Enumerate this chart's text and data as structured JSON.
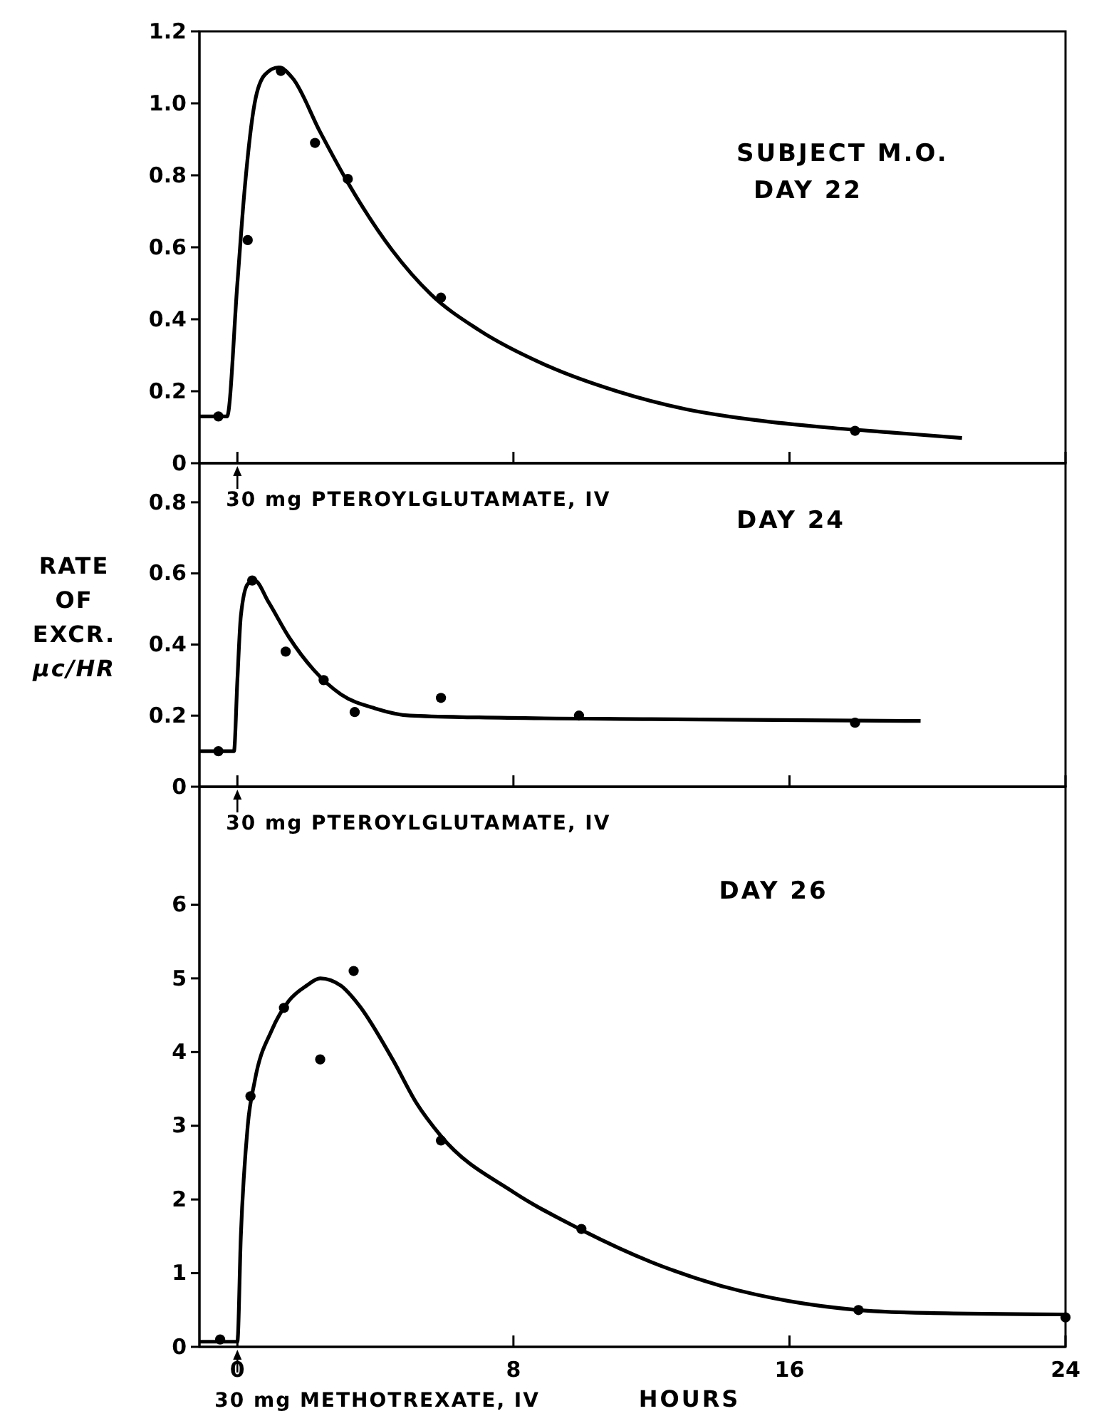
{
  "chart_data": [
    {
      "type": "scatter",
      "title": "SUBJECT M.O.",
      "subtitle": "DAY 22",
      "xlim": [
        -1.1,
        24
      ],
      "xticks": [
        0,
        8,
        16,
        24
      ],
      "ylim": [
        0,
        1.2
      ],
      "yticks": [
        0,
        0.2,
        0.4,
        0.6,
        0.8,
        {
          "value": 1.0,
          "label": "1.0"
        },
        1.2
      ],
      "tick_labels": "y",
      "grid": false,
      "annotations": [
        "30 mg PTEROYLGLUTAMATE, IV"
      ],
      "series": [
        {
          "type": "scatter",
          "marker": "circle",
          "color": "#000000",
          "x": [
            -0.55,
            0.3,
            1.26,
            2.25,
            3.2,
            5.9,
            17.9
          ],
          "values": [
            0.13,
            0.62,
            1.09,
            0.89,
            0.79,
            0.46,
            0.09
          ]
        },
        {
          "type": "line",
          "marker": "none",
          "line_style": "solid",
          "color": "#000000",
          "x": [
            -1.1,
            -0.3,
            0,
            0.2,
            0.5,
            0.8,
            1.2,
            1.6,
            2.4,
            3.2,
            4.5,
            5.6,
            7,
            9,
            11,
            13,
            15,
            17,
            19,
            21
          ],
          "values": [
            0.13,
            0.13,
            0.5,
            0.75,
            1.0,
            1.08,
            1.1,
            1.07,
            0.92,
            0.78,
            0.59,
            0.47,
            0.37,
            0.27,
            0.2,
            0.15,
            0.12,
            0.1,
            0.085,
            0.07
          ]
        }
      ]
    },
    {
      "type": "scatter",
      "title": "DAY 24",
      "ylabel": "RATE OF EXCR. μc/HR",
      "xlim": [
        -1.1,
        24
      ],
      "xticks": [
        0,
        8,
        16,
        24
      ],
      "ylim": [
        0,
        0.91
      ],
      "yticks": [
        0,
        0.2,
        0.4,
        0.6,
        0.8
      ],
      "tick_labels": "y",
      "grid": false,
      "annotations": [
        "30 mg PTEROYLGLUTAMATE, IV"
      ],
      "series": [
        {
          "type": "scatter",
          "marker": "circle",
          "color": "#000000",
          "x": [
            -0.55,
            0.43,
            1.4,
            2.5,
            3.4,
            5.9,
            9.9,
            17.9
          ],
          "values": [
            0.1,
            0.58,
            0.38,
            0.3,
            0.21,
            0.25,
            0.2,
            0.18
          ]
        },
        {
          "type": "line",
          "marker": "none",
          "line_style": "solid",
          "color": "#000000",
          "x": [
            -1.1,
            -0.1,
            0,
            0.1,
            0.3,
            0.5,
            0.9,
            1.5,
            2.2,
            3,
            4,
            5,
            7,
            12,
            19.8
          ],
          "values": [
            0.1,
            0.1,
            0.3,
            0.48,
            0.57,
            0.58,
            0.52,
            0.42,
            0.33,
            0.26,
            0.22,
            0.2,
            0.195,
            0.19,
            0.185
          ]
        }
      ]
    },
    {
      "type": "scatter",
      "title": "DAY 26",
      "xlabel": "HOURS",
      "xlim": [
        -1.1,
        24
      ],
      "xticks": [
        0,
        8,
        16,
        24
      ],
      "ylim": [
        0,
        7.6
      ],
      "yticks": [
        0,
        1,
        2,
        3,
        4,
        5,
        6
      ],
      "grid": false,
      "annotations": [
        "30 mg METHOTREXATE, IV"
      ],
      "series": [
        {
          "type": "scatter",
          "marker": "circle",
          "color": "#000000",
          "x": [
            -0.5,
            0.38,
            1.35,
            2.4,
            3.37,
            5.9,
            9.97,
            18,
            24
          ],
          "values": [
            0.1,
            3.4,
            4.6,
            3.9,
            5.1,
            2.8,
            1.6,
            0.5,
            0.4
          ]
        },
        {
          "type": "line",
          "marker": "none",
          "line_style": "solid",
          "color": "#000000",
          "x": [
            -1.1,
            -0.1,
            0,
            0.1,
            0.3,
            0.5,
            1,
            1.5,
            2,
            2.4,
            3,
            3.5,
            4.5,
            5.2,
            5.9,
            8,
            10,
            12,
            14,
            16,
            18,
            20,
            24
          ],
          "values": [
            0.07,
            0.07,
            0.07,
            1.5,
            3.0,
            3.6,
            4.3,
            4.7,
            4.9,
            5.0,
            4.9,
            4.65,
            3.9,
            3.3,
            2.86,
            2.1,
            1.58,
            1.15,
            0.83,
            0.62,
            0.5,
            0.46,
            0.44
          ]
        }
      ]
    }
  ]
}
